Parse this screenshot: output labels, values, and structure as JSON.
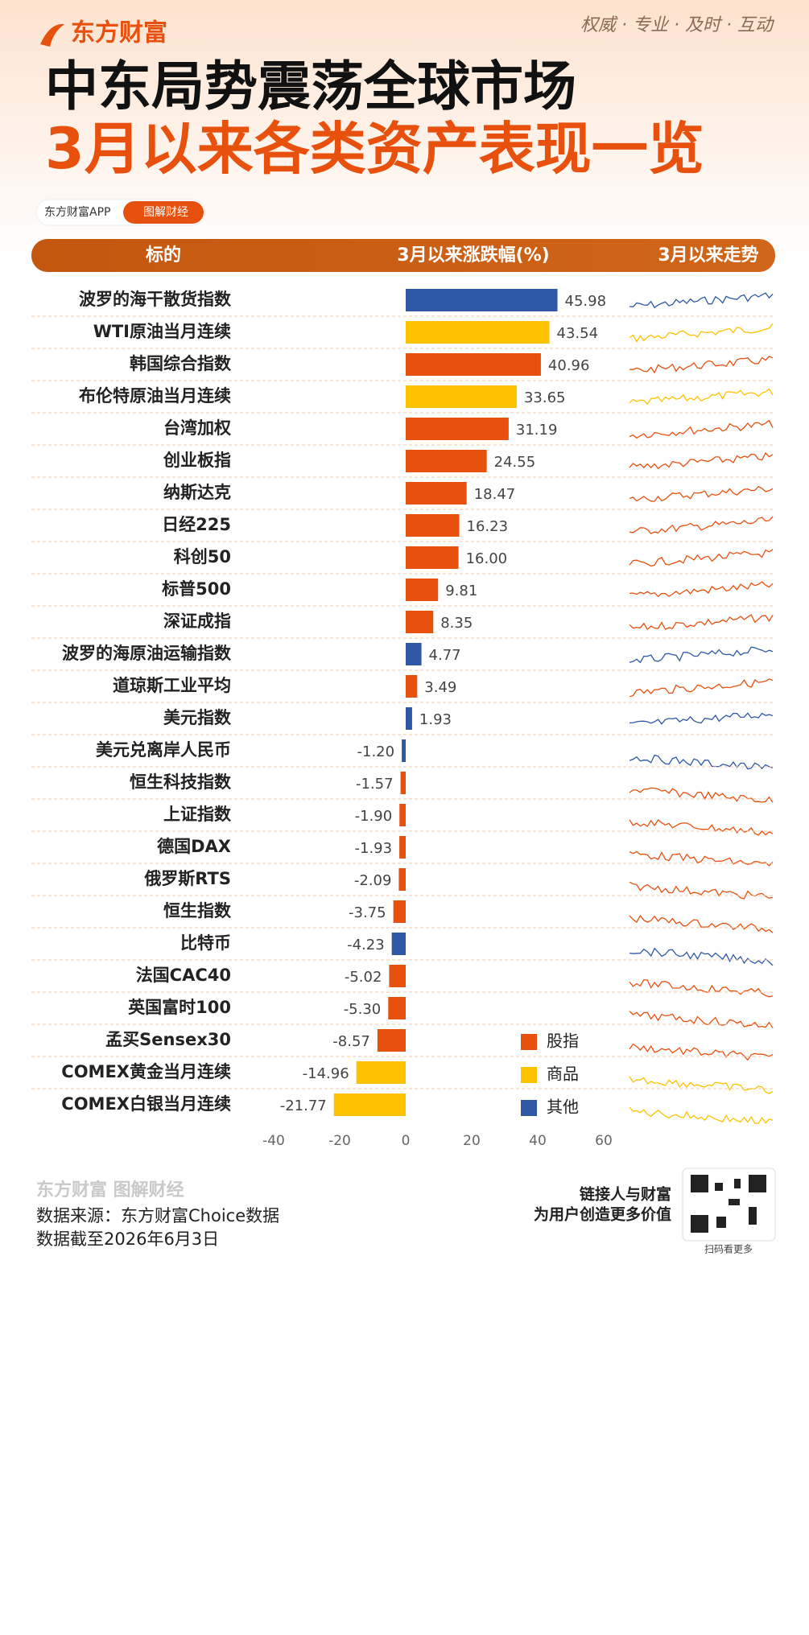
{
  "header": {
    "brand": "东方财富",
    "slogan": "权威 · 专业 · 及时 · 互动",
    "title": "中东局势震荡全球市场",
    "subtitle": "3月以来各类资产表现一览",
    "app": "东方财富APP",
    "tag": "图解财经"
  },
  "chart_data": {
    "type": "bar",
    "orientation": "horizontal",
    "columns": [
      "标的",
      "3月以来涨跌幅(%)",
      "3月以来走势"
    ],
    "categories": [
      "波罗的海干散货指数",
      "WTI原油当月连续",
      "韩国综合指数",
      "布伦特原油当月连续",
      "台湾加权",
      "创业板指",
      "纳斯达克",
      "日经225",
      "科创50",
      "标普500",
      "深证成指",
      "波罗的海原油运输指数",
      "道琼斯工业平均",
      "美元指数",
      "美元兑离岸人民币",
      "恒生科技指数",
      "上证指数",
      "德国DAX",
      "俄罗斯RTS",
      "恒生指数",
      "比特币",
      "法国CAC40",
      "英国富时100",
      "孟买Sensex30",
      "COMEX黄金当月连续",
      "COMEX白银当月连续"
    ],
    "values": [
      45.98,
      43.54,
      40.96,
      33.65,
      31.19,
      24.55,
      18.47,
      16.23,
      16,
      9.81,
      8.35,
      4.77,
      3.49,
      1.93,
      -1.2,
      -1.57,
      -1.9,
      -1.93,
      -2.09,
      -3.75,
      -4.23,
      -5.02,
      -5.3,
      -8.57,
      -14.96,
      -21.77
    ],
    "value_labels": [
      "45.98",
      "43.54",
      "40.96",
      "33.65",
      "31.19",
      "24.55",
      "18.47",
      "16.23",
      "16.00",
      "9.81",
      "8.35",
      "4.77",
      "3.49",
      "1.93",
      "-1.20",
      "-1.57",
      "-1.90",
      "-1.93",
      "-2.09",
      "-3.75",
      "-4.23",
      "-5.02",
      "-5.30",
      "-8.57",
      "-14.96",
      "-21.77"
    ],
    "colors": [
      "#2e58a6",
      "#fcc200",
      "#e8500e",
      "#fcc200",
      "#e8500e",
      "#e8500e",
      "#e8500e",
      "#e8500e",
      "#e8500e",
      "#e8500e",
      "#e8500e",
      "#2e58a6",
      "#e8500e",
      "#2e58a6",
      "#2e58a6",
      "#e8500e",
      "#e8500e",
      "#e8500e",
      "#e8500e",
      "#e8500e",
      "#2e58a6",
      "#e8500e",
      "#e8500e",
      "#e8500e",
      "#fcc200",
      "#fcc200"
    ],
    "legend": [
      {
        "name": "股指",
        "color": "#e8500e"
      },
      {
        "name": "商品",
        "color": "#fcc200"
      },
      {
        "name": "其他",
        "color": "#2e58a6"
      }
    ],
    "xlim": [
      -40,
      60
    ],
    "xticks": [
      -40,
      -20,
      0,
      20,
      40,
      60
    ]
  },
  "footer": {
    "logo": "东方财富 图解财经",
    "source": "数据来源：东方财富Choice数据",
    "date": "数据截至2026年6月3日",
    "slogan1": "链接人与财富",
    "slogan2": "为用户创造更多价值",
    "qr_caption": "扫码看更多"
  }
}
